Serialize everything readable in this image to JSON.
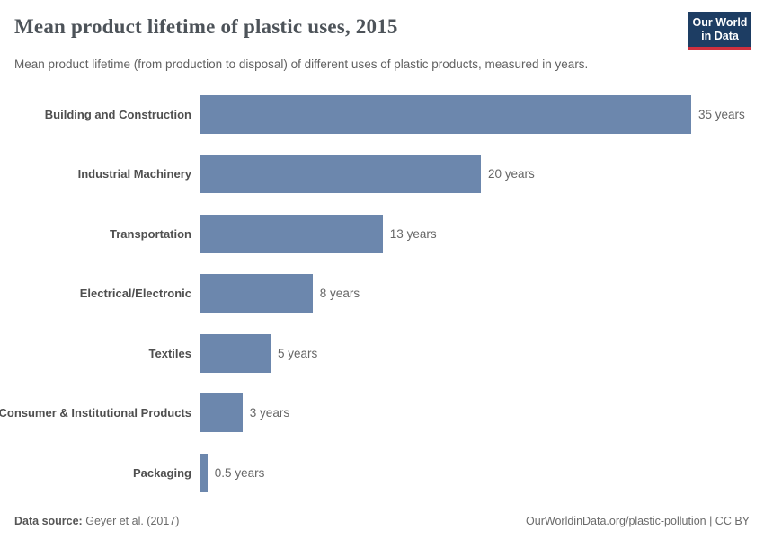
{
  "header": {
    "title": "Mean product lifetime of plastic uses, 2015",
    "subtitle": "Mean product lifetime (from production to disposal) of different uses of plastic products, measured in years.",
    "logo": {
      "line1": "Our World",
      "line2": "in Data",
      "bg_color": "#1d3d63",
      "accent_color": "#cf303e"
    }
  },
  "chart_data": {
    "type": "bar",
    "orientation": "horizontal",
    "title": "Mean product lifetime of plastic uses, 2015",
    "xlabel": "",
    "ylabel": "",
    "unit": "years",
    "xlim": [
      0,
      35
    ],
    "grid": false,
    "legend": "none",
    "bar_color": "#6c87ad",
    "axis_line_color": "#d8d8d8",
    "categories": [
      "Building and Construction",
      "Industrial Machinery",
      "Transportation",
      "Electrical/Electronic",
      "Textiles",
      "Consumer & Institutional Products",
      "Packaging"
    ],
    "values": [
      35,
      20,
      13,
      8,
      5,
      3,
      0.5
    ],
    "value_labels": [
      "35 years",
      "20 years",
      "13 years",
      "8 years",
      "5 years",
      "3 years",
      "0.5 years"
    ]
  },
  "footer": {
    "source_label": "Data source:",
    "source_value": "Geyer et al. (2017)",
    "credit": "OurWorldinData.org/plastic-pollution | CC BY"
  }
}
